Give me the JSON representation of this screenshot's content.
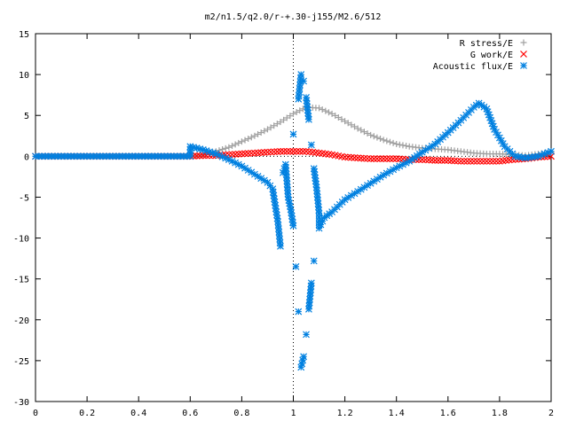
{
  "chart_data": {
    "type": "scatter",
    "title": "m2/n1.5/q2.0/r-+.30-j155/M2.6/512",
    "xlabel": "",
    "ylabel": "",
    "xlim": [
      0,
      2
    ],
    "ylim": [
      -30,
      15
    ],
    "x_ticks": [
      "0",
      "0.2",
      "0.4",
      "0.6",
      "0.8",
      "1",
      "1.2",
      "1.4",
      "1.6",
      "1.8",
      "2"
    ],
    "x_tick_values": [
      0,
      0.2,
      0.4,
      0.6,
      0.8,
      1.0,
      1.2,
      1.4,
      1.6,
      1.8,
      2.0
    ],
    "y_ticks": [
      "15",
      "10",
      "5",
      "0",
      "-5",
      "-10",
      "-15",
      "-20",
      "-25",
      "-30"
    ],
    "y_tick_values": [
      15,
      10,
      5,
      0,
      -5,
      -10,
      -15,
      -20,
      -25,
      -30
    ],
    "grid": false,
    "legend_position": "top-right",
    "series": [
      {
        "name": "R stress/E",
        "marker": "plus",
        "color": "#a0a0a0",
        "points": [
          [
            0.0,
            0.0
          ],
          [
            0.1,
            0.0
          ],
          [
            0.2,
            0.0
          ],
          [
            0.3,
            0.0
          ],
          [
            0.4,
            0.0
          ],
          [
            0.5,
            0.0
          ],
          [
            0.6,
            0.0
          ],
          [
            0.65,
            0.1
          ],
          [
            0.7,
            0.6
          ],
          [
            0.75,
            1.1
          ],
          [
            0.8,
            1.8
          ],
          [
            0.85,
            2.5
          ],
          [
            0.9,
            3.3
          ],
          [
            0.95,
            4.2
          ],
          [
            1.0,
            5.2
          ],
          [
            1.05,
            6.0
          ],
          [
            1.1,
            5.9
          ],
          [
            1.15,
            5.2
          ],
          [
            1.2,
            4.3
          ],
          [
            1.25,
            3.4
          ],
          [
            1.3,
            2.6
          ],
          [
            1.35,
            2.0
          ],
          [
            1.4,
            1.5
          ],
          [
            1.45,
            1.2
          ],
          [
            1.5,
            1.0
          ],
          [
            1.55,
            0.9
          ],
          [
            1.6,
            0.8
          ],
          [
            1.65,
            0.6
          ],
          [
            1.7,
            0.4
          ],
          [
            1.75,
            0.3
          ],
          [
            1.8,
            0.3
          ],
          [
            1.85,
            0.2
          ],
          [
            1.9,
            0.1
          ],
          [
            1.95,
            0.3
          ],
          [
            2.0,
            0.5
          ]
        ]
      },
      {
        "name": "G work/E",
        "marker": "cross",
        "color": "#ff0000",
        "points": [
          [
            0.0,
            0.0
          ],
          [
            0.1,
            0.0
          ],
          [
            0.2,
            0.0
          ],
          [
            0.3,
            0.0
          ],
          [
            0.4,
            0.0
          ],
          [
            0.5,
            0.0
          ],
          [
            0.6,
            0.0
          ],
          [
            0.65,
            0.1
          ],
          [
            0.7,
            0.1
          ],
          [
            0.75,
            0.2
          ],
          [
            0.8,
            0.3
          ],
          [
            0.85,
            0.4
          ],
          [
            0.9,
            0.5
          ],
          [
            0.95,
            0.6
          ],
          [
            1.0,
            0.6
          ],
          [
            1.05,
            0.6
          ],
          [
            1.1,
            0.4
          ],
          [
            1.15,
            0.2
          ],
          [
            1.2,
            -0.1
          ],
          [
            1.25,
            -0.2
          ],
          [
            1.3,
            -0.3
          ],
          [
            1.35,
            -0.3
          ],
          [
            1.4,
            -0.3
          ],
          [
            1.45,
            -0.4
          ],
          [
            1.5,
            -0.4
          ],
          [
            1.55,
            -0.5
          ],
          [
            1.6,
            -0.5
          ],
          [
            1.65,
            -0.6
          ],
          [
            1.7,
            -0.6
          ],
          [
            1.75,
            -0.6
          ],
          [
            1.8,
            -0.6
          ],
          [
            1.85,
            -0.4
          ],
          [
            1.9,
            -0.3
          ],
          [
            1.95,
            -0.1
          ],
          [
            2.0,
            0.0
          ]
        ]
      },
      {
        "name": "Acoustic flux/E",
        "marker": "star",
        "color": "#0080e0",
        "points": [
          [
            0.0,
            0.0
          ],
          [
            0.1,
            0.0
          ],
          [
            0.2,
            0.0
          ],
          [
            0.3,
            0.0
          ],
          [
            0.4,
            0.0
          ],
          [
            0.5,
            0.0
          ],
          [
            0.6,
            0.0
          ],
          [
            0.6,
            1.2
          ],
          [
            0.65,
            0.8
          ],
          [
            0.7,
            0.3
          ],
          [
            0.75,
            -0.4
          ],
          [
            0.8,
            -1.2
          ],
          [
            0.85,
            -2.2
          ],
          [
            0.9,
            -3.2
          ],
          [
            0.92,
            -4.0
          ],
          [
            0.93,
            -6.0
          ],
          [
            0.94,
            -8.0
          ],
          [
            0.95,
            -11.0
          ],
          [
            0.96,
            -2.0
          ],
          [
            0.97,
            -1.0
          ],
          [
            0.98,
            -5.0
          ],
          [
            0.99,
            -6.5
          ],
          [
            1.0,
            -8.5
          ],
          [
            1.0,
            2.7
          ],
          [
            1.01,
            -13.5
          ],
          [
            1.02,
            -19.0
          ],
          [
            1.02,
            7.0
          ],
          [
            1.03,
            10.0
          ],
          [
            1.03,
            -25.8
          ],
          [
            1.04,
            -24.5
          ],
          [
            1.04,
            9.2
          ],
          [
            1.05,
            -21.8
          ],
          [
            1.05,
            7.2
          ],
          [
            1.06,
            4.5
          ],
          [
            1.06,
            -18.7
          ],
          [
            1.07,
            -15.5
          ],
          [
            1.07,
            1.4
          ],
          [
            1.08,
            -12.8
          ],
          [
            1.08,
            -1.5
          ],
          [
            1.09,
            -3.8
          ],
          [
            1.1,
            -7.0
          ],
          [
            1.1,
            -8.8
          ],
          [
            1.12,
            -7.5
          ],
          [
            1.15,
            -6.8
          ],
          [
            1.2,
            -5.3
          ],
          [
            1.25,
            -4.3
          ],
          [
            1.3,
            -3.3
          ],
          [
            1.35,
            -2.3
          ],
          [
            1.4,
            -1.4
          ],
          [
            1.45,
            -0.6
          ],
          [
            1.5,
            0.5
          ],
          [
            1.55,
            1.5
          ],
          [
            1.6,
            2.9
          ],
          [
            1.65,
            4.4
          ],
          [
            1.7,
            6.0
          ],
          [
            1.72,
            6.5
          ],
          [
            1.75,
            5.8
          ],
          [
            1.78,
            3.3
          ],
          [
            1.82,
            1.2
          ],
          [
            1.86,
            0.0
          ],
          [
            1.9,
            -0.2
          ],
          [
            1.95,
            0.0
          ],
          [
            2.0,
            0.6
          ]
        ]
      }
    ]
  }
}
